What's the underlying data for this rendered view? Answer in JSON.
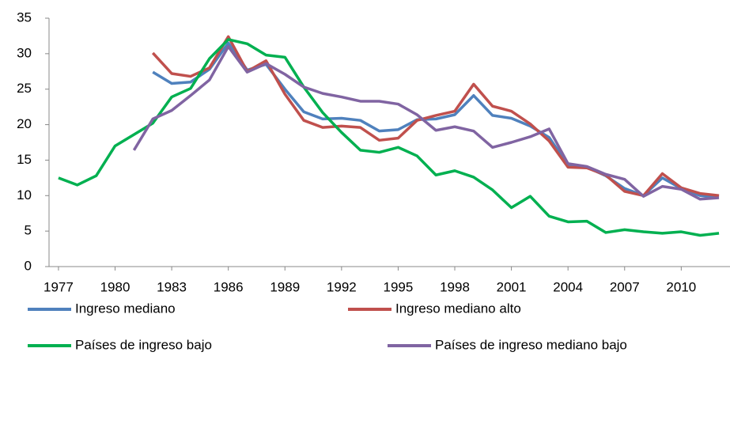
{
  "chart_data": {
    "type": "line",
    "x": [
      1977,
      1978,
      1979,
      1980,
      1981,
      1982,
      1983,
      1984,
      1985,
      1986,
      1987,
      1988,
      1989,
      1990,
      1991,
      1992,
      1993,
      1994,
      1995,
      1996,
      1997,
      1998,
      1999,
      2000,
      2001,
      2002,
      2003,
      2004,
      2005,
      2006,
      2007,
      2008,
      2009,
      2010,
      2011,
      2012
    ],
    "xlim": [
      1976.5,
      2012.5
    ],
    "xticks": [
      1977,
      1980,
      1983,
      1986,
      1989,
      1992,
      1995,
      1998,
      2001,
      2004,
      2007,
      2010
    ],
    "ylim": [
      0,
      35
    ],
    "yticks": [
      0,
      5,
      10,
      15,
      20,
      25,
      30,
      35
    ],
    "series": [
      {
        "name": "Ingreso mediano",
        "color": "#4f81bd",
        "values": [
          null,
          null,
          null,
          null,
          null,
          27.4,
          25.8,
          26.0,
          27.8,
          31.5,
          27.7,
          28.5,
          25.0,
          21.8,
          20.8,
          20.9,
          20.6,
          19.1,
          19.3,
          20.7,
          20.8,
          21.4,
          24.1,
          21.3,
          20.9,
          19.8,
          18.2,
          14.3,
          14.0,
          12.8,
          11.0,
          10.0,
          12.5,
          11.0,
          10.0,
          9.8
        ]
      },
      {
        "name": "Ingreso mediano alto",
        "color": "#c0504d",
        "values": [
          null,
          null,
          null,
          null,
          null,
          30.1,
          27.2,
          26.8,
          28.0,
          32.4,
          27.5,
          29.0,
          24.3,
          20.6,
          19.6,
          19.8,
          19.6,
          17.8,
          18.1,
          20.6,
          21.3,
          21.9,
          25.7,
          22.6,
          21.9,
          20.1,
          17.7,
          14.0,
          13.9,
          12.9,
          10.6,
          10.0,
          13.1,
          11.1,
          10.3,
          10.0
        ]
      },
      {
        "name": "Países de ingreso bajo",
        "color": "#00b050",
        "values": [
          12.5,
          11.5,
          12.8,
          17.0,
          18.6,
          20.2,
          23.9,
          25.1,
          29.3,
          32.0,
          31.4,
          29.8,
          29.5,
          25.3,
          21.7,
          18.9,
          16.4,
          16.1,
          16.8,
          15.6,
          12.9,
          13.5,
          12.6,
          10.8,
          8.3,
          9.9,
          7.1,
          6.3,
          6.4,
          4.8,
          5.2,
          4.9,
          4.7,
          4.9,
          4.4,
          4.7
        ]
      },
      {
        "name": "Países de ingreso mediano bajo",
        "color": "#8064a2",
        "values": [
          null,
          null,
          null,
          null,
          16.4,
          20.8,
          22.0,
          24.1,
          26.3,
          31.0,
          27.4,
          28.6,
          27.1,
          25.3,
          24.4,
          23.9,
          23.3,
          23.3,
          22.9,
          21.4,
          19.2,
          19.7,
          19.1,
          16.8,
          17.5,
          18.3,
          19.4,
          14.5,
          14.1,
          13.0,
          12.3,
          9.9,
          11.3,
          10.9,
          9.5,
          9.7
        ]
      }
    ]
  }
}
